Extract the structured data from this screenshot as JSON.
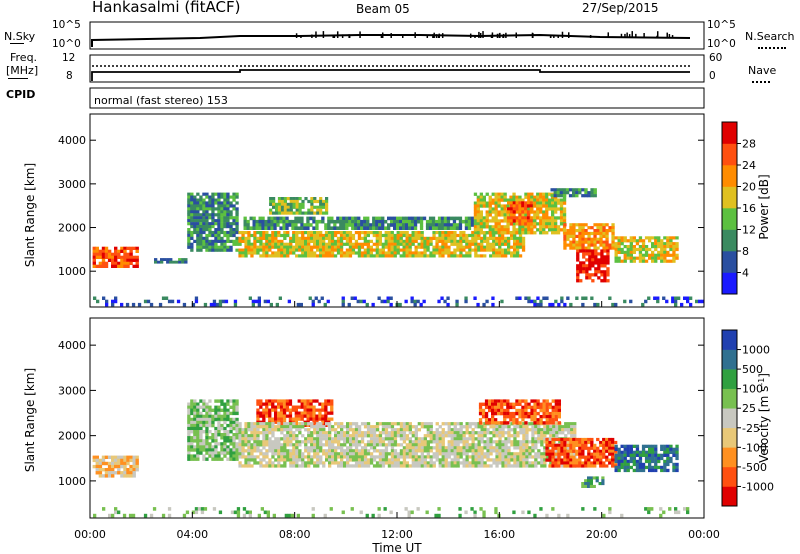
{
  "header": {
    "station": "Hankasalmi (fitACF)",
    "beam": "Beam 05",
    "date": "27/Sep/2015"
  },
  "top_panels": {
    "nsky_label": "N.Sky",
    "nsearch_label": "N.Search",
    "noise_ticks_left": [
      "10^5",
      "10^0"
    ],
    "noise_ticks_right": [
      "10^5",
      "10^0"
    ],
    "freq_label_1": "Freq.",
    "freq_label_2": "[MHz]",
    "freq_ticks": [
      "12",
      "8"
    ],
    "nave_label": "Nave",
    "nave_ticks": [
      "60",
      "0"
    ],
    "cpid_label": "CPID",
    "cpid_text": "normal (fast stereo) 153"
  },
  "colors": {
    "power": [
      "#1a1aff",
      "#2a4fa0",
      "#3a8a60",
      "#5cc040",
      "#e0c020",
      "#ff8c00",
      "#ff5010",
      "#e00000"
    ],
    "velocity": [
      "#e00000",
      "#ff5010",
      "#ff9020",
      "#e8c878",
      "#c8c8c0",
      "#78c050",
      "#30a040",
      "#307090",
      "#2040b0"
    ]
  },
  "chart_data": [
    {
      "type": "heatmap",
      "quantity": "Power",
      "xlabel": "",
      "ylabel": "Slant Range [km]",
      "xlim_hours": [
        0,
        24
      ],
      "ylim": [
        180,
        4600
      ],
      "y_ticks": [
        1000,
        2000,
        3000,
        4000
      ],
      "colorbar_label": "Power [dB]",
      "colorbar_ticks": [
        "4",
        "8",
        "12",
        "16",
        "20",
        "24",
        "28"
      ],
      "colorbar_range": [
        0,
        32
      ],
      "echo_regions": [
        {
          "t0": 0.1,
          "t1": 1.9,
          "r0": 1080,
          "r1": 1560,
          "level": 6
        },
        {
          "t0": 2.5,
          "t1": 3.8,
          "r0": 1180,
          "r1": 1300,
          "level": 2
        },
        {
          "t0": 3.8,
          "t1": 5.8,
          "r0": 1450,
          "r1": 2800,
          "level": 2
        },
        {
          "t0": 5.8,
          "t1": 17.0,
          "r0": 1320,
          "r1": 1920,
          "level": 4
        },
        {
          "t0": 6.0,
          "t1": 15.0,
          "r0": 1950,
          "r1": 2250,
          "level": 2
        },
        {
          "t0": 7.0,
          "t1": 9.3,
          "r0": 2300,
          "r1": 2700,
          "level": 3
        },
        {
          "t0": 15.0,
          "t1": 18.6,
          "r0": 1850,
          "r1": 2800,
          "level": 4
        },
        {
          "t0": 16.3,
          "t1": 17.3,
          "r0": 2050,
          "r1": 2600,
          "level": 6
        },
        {
          "t0": 18.5,
          "t1": 20.5,
          "r0": 1500,
          "r1": 2100,
          "level": 5
        },
        {
          "t0": 19.0,
          "t1": 20.3,
          "r0": 750,
          "r1": 1500,
          "level": 7
        },
        {
          "t0": 20.5,
          "t1": 23.0,
          "r0": 1200,
          "r1": 1800,
          "level": 4
        },
        {
          "t0": 18.0,
          "t1": 19.8,
          "r0": 2700,
          "r1": 2900,
          "level": 2
        },
        {
          "t0": 0.0,
          "t1": 24.0,
          "r0": 200,
          "r1": 420,
          "level": 1
        }
      ]
    },
    {
      "type": "heatmap",
      "quantity": "Velocity",
      "xlabel": "Time UT",
      "ylabel": "Slant Range [km]",
      "xlim_hours": [
        0,
        24
      ],
      "ylim": [
        180,
        4600
      ],
      "y_ticks": [
        1000,
        2000,
        3000,
        4000
      ],
      "x_ticks": [
        "00:00",
        "04:00",
        "08:00",
        "12:00",
        "16:00",
        "20:00",
        "00:00"
      ],
      "colorbar_label": "Velocity [m s",
      "colorbar_label_sup": "-1",
      "colorbar_label_end": "]",
      "colorbar_ticks": [
        "1000",
        "500",
        "100",
        "25",
        "-25",
        "-100",
        "-500",
        "-1000"
      ],
      "echo_regions": [
        {
          "t0": 0.1,
          "t1": 1.9,
          "r0": 1080,
          "r1": 1560,
          "level": 3
        },
        {
          "t0": 3.8,
          "t1": 5.8,
          "r0": 1450,
          "r1": 2800,
          "level": 5
        },
        {
          "t0": 6.5,
          "t1": 9.5,
          "r0": 2200,
          "r1": 2800,
          "level": 1
        },
        {
          "t0": 5.8,
          "t1": 19.0,
          "r0": 1300,
          "r1": 2300,
          "level": 4
        },
        {
          "t0": 15.2,
          "t1": 18.4,
          "r0": 2250,
          "r1": 2800,
          "level": 1
        },
        {
          "t0": 17.8,
          "t1": 20.6,
          "r0": 1300,
          "r1": 1950,
          "level": 1
        },
        {
          "t0": 19.2,
          "t1": 20.1,
          "r0": 850,
          "r1": 1100,
          "level": 6
        },
        {
          "t0": 20.5,
          "t1": 23.0,
          "r0": 1200,
          "r1": 1800,
          "level": 7
        },
        {
          "t0": 0.0,
          "t1": 24.0,
          "r0": 200,
          "r1": 420,
          "level": 5
        }
      ]
    }
  ]
}
